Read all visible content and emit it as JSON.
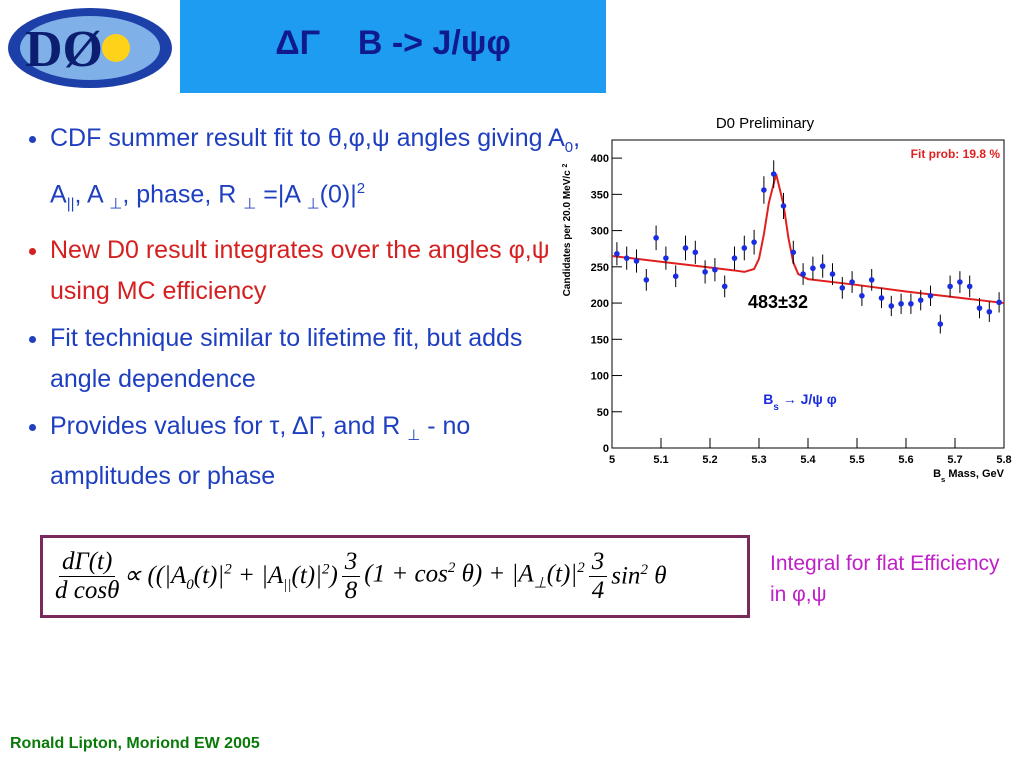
{
  "header": {
    "title": "ΔΓ    B -> J/ψφ",
    "logo": "DØ"
  },
  "bullets": [
    {
      "color": "#1e3fc0",
      "parts": [
        "CDF summer result fit to θ,φ,ψ angles giving A",
        {
          "sub": "0"
        },
        ", A",
        {
          "sub": "||"
        },
        ", A ",
        {
          "sub": "⊥"
        },
        ", phase, R ",
        {
          "sub": "⊥"
        },
        " =|A ",
        {
          "sub": "⊥"
        },
        "(0)|",
        {
          "sup": "2"
        }
      ]
    },
    {
      "color": "#d42020",
      "parts": [
        "New D0 result integrates over the angles φ,ψ using MC efficiency"
      ]
    },
    {
      "color": "#1e3fc0",
      "parts": [
        "Fit technique similar to lifetime fit, but adds angle dependence"
      ]
    },
    {
      "color": "#1e3fc0",
      "parts": [
        "Provides values for τ, ΔΓ, and R ",
        {
          "sub": "⊥"
        },
        " - no amplitudes or phase"
      ]
    }
  ],
  "equation": {
    "segments": [
      {
        "num": "dΓ(t)",
        "den": "d cosθ"
      },
      {
        "parts": [
          "∝ ((|A",
          {
            "sub": "0"
          },
          "(t)|",
          {
            "sup": "2"
          },
          " + |A",
          {
            "sub": "||"
          },
          "(t)|",
          {
            "sup": "2"
          },
          ")"
        ]
      },
      {
        "num": "3",
        "den": "8"
      },
      {
        "parts": [
          "(1 + cos",
          {
            "sup": "2"
          },
          " θ) + |A",
          {
            "sub": "⊥"
          },
          "(t)|",
          {
            "sup": "2"
          }
        ]
      },
      {
        "num": "3",
        "den": "4"
      },
      {
        "parts": [
          "sin",
          {
            "sup": "2"
          },
          " θ"
        ]
      }
    ]
  },
  "side_note": "Integral for flat Efficiency in φ,ψ",
  "footer": "Ronald Lipton, Moriond EW 2005",
  "chart": {
    "type": "errorbar",
    "title": "D0 Preliminary",
    "x_label": [
      "B",
      {
        "sub": "s"
      },
      " Mass,  GeV"
    ],
    "y_label": [
      "Candidates per 20.0 MeV/c ",
      {
        "sup": "2"
      }
    ],
    "x": [
      5.01,
      5.03,
      5.05,
      5.07,
      5.09,
      5.11,
      5.13,
      5.15,
      5.17,
      5.19,
      5.21,
      5.23,
      5.25,
      5.27,
      5.29,
      5.31,
      5.33,
      5.35,
      5.37,
      5.39,
      5.41,
      5.43,
      5.45,
      5.47,
      5.49,
      5.51,
      5.53,
      5.55,
      5.57,
      5.59,
      5.61,
      5.63,
      5.65,
      5.67,
      5.69,
      5.71,
      5.73,
      5.75,
      5.77,
      5.79
    ],
    "values": [
      268,
      262,
      258,
      232,
      290,
      262,
      237,
      276,
      270,
      243,
      246,
      223,
      262,
      276,
      284,
      356,
      378,
      334,
      270,
      240,
      248,
      251,
      240,
      221,
      229,
      210,
      232,
      207,
      196,
      199,
      199,
      204,
      210,
      171,
      223,
      229,
      223,
      193,
      188,
      201
    ],
    "errors": [
      16,
      16,
      16,
      15,
      17,
      16,
      15,
      17,
      16,
      16,
      16,
      15,
      16,
      17,
      17,
      19,
      19,
      18,
      16,
      15,
      16,
      16,
      15,
      15,
      15,
      14,
      15,
      14,
      14,
      14,
      14,
      14,
      14,
      13,
      15,
      15,
      15,
      14,
      14,
      14
    ],
    "color": "#1a2de0",
    "fit": {
      "color": "#e02020",
      "x": [
        5.0,
        5.1,
        5.2,
        5.25,
        5.27,
        5.29,
        5.3,
        5.31,
        5.32,
        5.335,
        5.35,
        5.36,
        5.37,
        5.38,
        5.4,
        5.5,
        5.6,
        5.7,
        5.8
      ],
      "values": [
        265,
        257,
        249,
        245,
        243,
        247,
        261,
        295,
        338,
        378,
        336,
        290,
        256,
        240,
        233,
        225,
        216,
        208,
        200
      ]
    },
    "xlim": [
      5,
      5.8
    ],
    "ylim": [
      0,
      425
    ],
    "xticks": [
      5,
      5.1,
      5.2,
      5.3,
      5.4,
      5.5,
      5.6,
      5.7,
      5.8
    ],
    "yticks": [
      0,
      50,
      100,
      150,
      200,
      250,
      300,
      350,
      400
    ],
    "annotations": {
      "fit_prob": "Fit prob: 19.8 %",
      "yield": "483±32",
      "decay": [
        "B",
        {
          "sub": "s"
        },
        "  → J/ψ φ"
      ]
    }
  }
}
